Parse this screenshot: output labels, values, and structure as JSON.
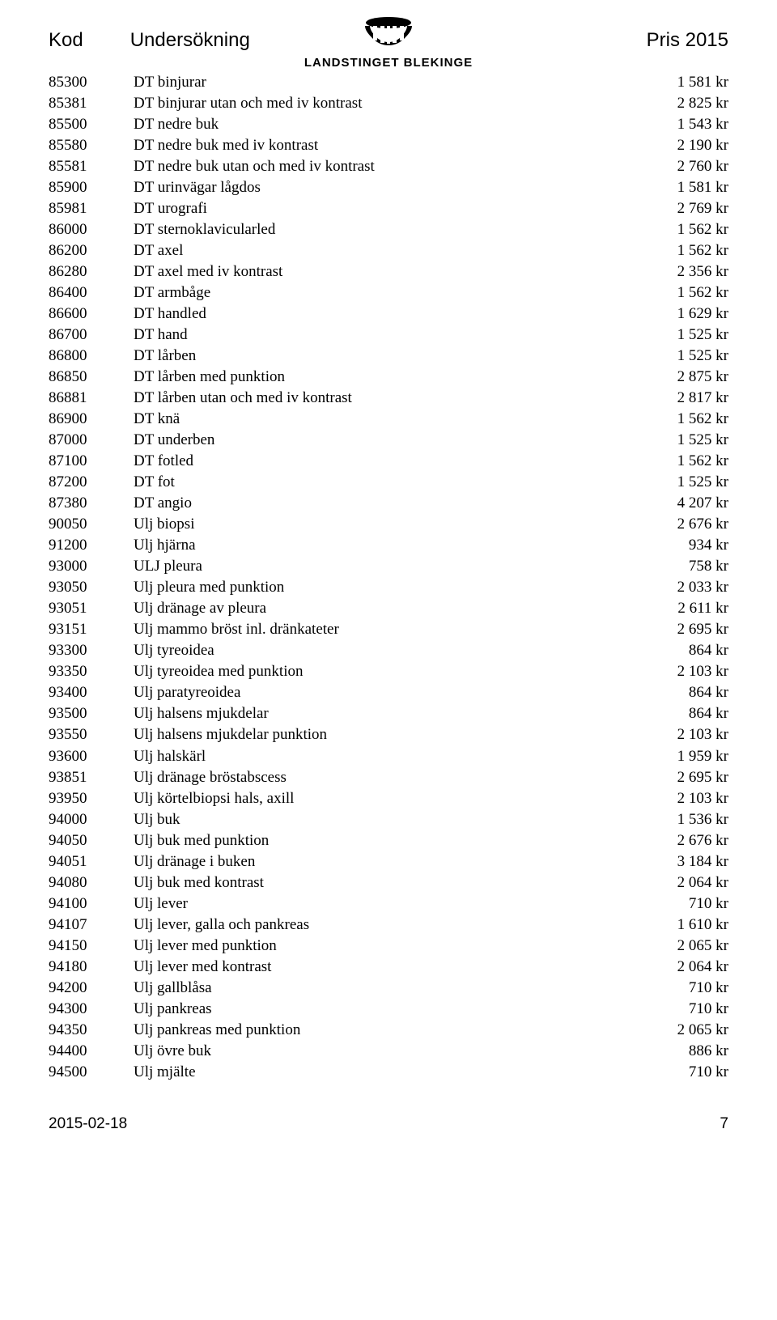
{
  "header": {
    "col1": "Kod",
    "col2": "Undersökning",
    "col3": "Pris 2015",
    "org": "LANDSTINGET BLEKINGE"
  },
  "rows": [
    {
      "code": "85300",
      "desc": "DT binjurar",
      "price": "1 581 kr"
    },
    {
      "code": "85381",
      "desc": "DT binjurar utan och med iv kontrast",
      "price": "2 825 kr"
    },
    {
      "code": "85500",
      "desc": "DT nedre buk",
      "price": "1 543 kr"
    },
    {
      "code": "85580",
      "desc": "DT nedre buk med iv kontrast",
      "price": "2 190 kr"
    },
    {
      "code": "85581",
      "desc": "DT nedre buk utan och med iv kontrast",
      "price": "2 760 kr"
    },
    {
      "code": "85900",
      "desc": "DT urinvägar lågdos",
      "price": "1 581 kr"
    },
    {
      "code": "85981",
      "desc": "DT urografi",
      "price": "2 769 kr"
    },
    {
      "code": "86000",
      "desc": "DT sternoklavicularled",
      "price": "1 562 kr"
    },
    {
      "code": "86200",
      "desc": "DT axel",
      "price": "1 562 kr"
    },
    {
      "code": "86280",
      "desc": "DT axel med iv kontrast",
      "price": "2 356 kr"
    },
    {
      "code": "86400",
      "desc": "DT armbåge",
      "price": "1 562 kr"
    },
    {
      "code": "86600",
      "desc": "DT handled",
      "price": "1 629 kr"
    },
    {
      "code": "86700",
      "desc": "DT hand",
      "price": "1 525 kr"
    },
    {
      "code": "86800",
      "desc": "DT lårben",
      "price": "1 525 kr"
    },
    {
      "code": "86850",
      "desc": "DT lårben med punktion",
      "price": "2 875 kr"
    },
    {
      "code": "86881",
      "desc": "DT lårben utan och med iv kontrast",
      "price": "2 817 kr"
    },
    {
      "code": "86900",
      "desc": "DT knä",
      "price": "1 562 kr"
    },
    {
      "code": "87000",
      "desc": "DT underben",
      "price": "1 525 kr"
    },
    {
      "code": "87100",
      "desc": "DT fotled",
      "price": "1 562 kr"
    },
    {
      "code": "87200",
      "desc": "DT fot",
      "price": "1 525 kr"
    },
    {
      "code": "87380",
      "desc": "DT angio",
      "price": "4 207 kr"
    },
    {
      "code": "90050",
      "desc": "Ulj biopsi",
      "price": "2 676 kr"
    },
    {
      "code": "91200",
      "desc": "Ulj hjärna",
      "price": "934 kr"
    },
    {
      "code": "93000",
      "desc": "ULJ pleura",
      "price": "758 kr"
    },
    {
      "code": "93050",
      "desc": "Ulj pleura med punktion",
      "price": "2 033 kr"
    },
    {
      "code": "93051",
      "desc": "Ulj dränage av pleura",
      "price": "2 611 kr"
    },
    {
      "code": "93151",
      "desc": "Ulj mammo bröst inl. dränkateter",
      "price": "2 695 kr"
    },
    {
      "code": "93300",
      "desc": "Ulj tyreoidea",
      "price": "864 kr"
    },
    {
      "code": "93350",
      "desc": "Ulj tyreoidea med punktion",
      "price": "2 103 kr"
    },
    {
      "code": "93400",
      "desc": "Ulj paratyreoidea",
      "price": "864 kr"
    },
    {
      "code": "93500",
      "desc": "Ulj halsens mjukdelar",
      "price": "864 kr"
    },
    {
      "code": "93550",
      "desc": "Ulj halsens mjukdelar punktion",
      "price": "2 103 kr"
    },
    {
      "code": "93600",
      "desc": "Ulj halskärl",
      "price": "1 959 kr"
    },
    {
      "code": "93851",
      "desc": "Ulj dränage bröstabscess",
      "price": "2 695 kr"
    },
    {
      "code": "93950",
      "desc": "Ulj körtelbiopsi hals, axill",
      "price": "2 103 kr"
    },
    {
      "code": "94000",
      "desc": "Ulj buk",
      "price": "1 536 kr"
    },
    {
      "code": "94050",
      "desc": "Ulj buk med punktion",
      "price": "2 676 kr"
    },
    {
      "code": "94051",
      "desc": "Ulj dränage i buken",
      "price": "3 184 kr"
    },
    {
      "code": "94080",
      "desc": "Ulj buk med kontrast",
      "price": "2 064 kr"
    },
    {
      "code": "94100",
      "desc": "Ulj lever",
      "price": "710 kr"
    },
    {
      "code": "94107",
      "desc": "Ulj lever, galla och pankreas",
      "price": "1 610 kr"
    },
    {
      "code": "94150",
      "desc": "Ulj lever med punktion",
      "price": "2 065 kr"
    },
    {
      "code": "94180",
      "desc": "Ulj lever med kontrast",
      "price": "2 064 kr"
    },
    {
      "code": "94200",
      "desc": "Ulj gallblåsa",
      "price": "710 kr"
    },
    {
      "code": "94300",
      "desc": "Ulj pankreas",
      "price": "710 kr"
    },
    {
      "code": "94350",
      "desc": "Ulj pankreas med punktion",
      "price": "2 065 kr"
    },
    {
      "code": "94400",
      "desc": "Ulj övre buk",
      "price": "886 kr"
    },
    {
      "code": "94500",
      "desc": "Ulj mjälte",
      "price": "710 kr"
    }
  ],
  "footer": {
    "date": "2015-02-18",
    "page": "7"
  }
}
